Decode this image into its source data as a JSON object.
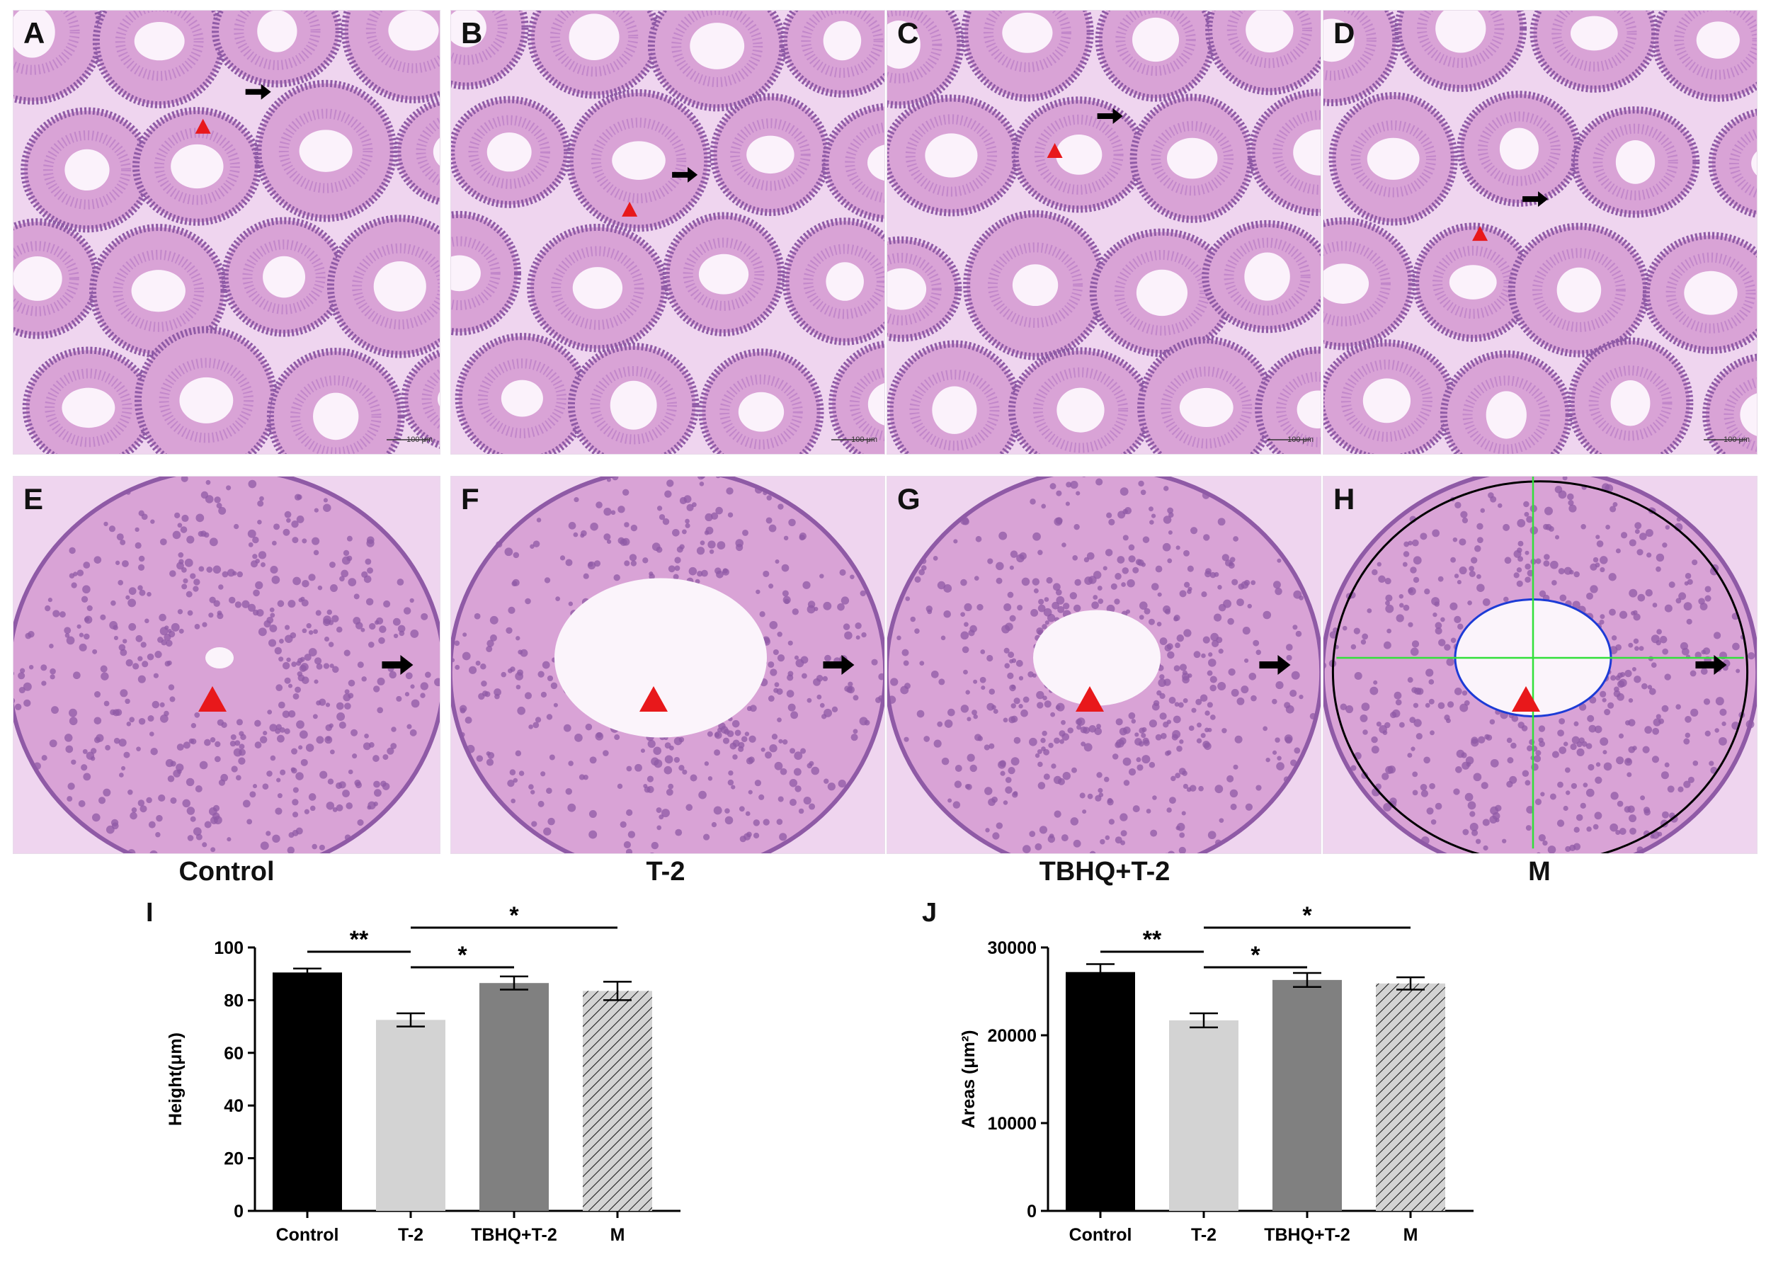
{
  "panels_top": [
    {
      "label": "A",
      "scale": "100 μm"
    },
    {
      "label": "B",
      "scale": "100 μm"
    },
    {
      "label": "C",
      "scale": "100 μm"
    },
    {
      "label": "D",
      "scale": "100 μm"
    }
  ],
  "panels_bottom": [
    {
      "label": "E"
    },
    {
      "label": "F"
    },
    {
      "label": "G"
    },
    {
      "label": "H"
    }
  ],
  "group_labels": [
    "Control",
    "T-2",
    "TBHQ+T-2",
    "M"
  ],
  "colors": {
    "tissue_pink": "#d9a3d6",
    "tissue_purple": "#8f5aa6",
    "arrowhead_red": "#e8181b",
    "arrow_black": "#000000",
    "outline_blue": "#1d3bd6",
    "outline_black": "#000000",
    "measure_green": "#32e03a"
  },
  "chart_label_I": "I",
  "chart_label_J": "J",
  "chart_data": [
    {
      "type": "bar",
      "categories": [
        "Control",
        "T-2",
        "TBHQ+T-2",
        "M"
      ],
      "values": [
        90.5,
        72.5,
        86.5,
        83.5
      ],
      "errors": [
        1.5,
        2.5,
        2.5,
        3.5
      ],
      "fills": [
        "#000000",
        "#d3d3d3",
        "#808080",
        "hatch"
      ],
      "ylabel": "Height(μm)",
      "ylim": [
        0,
        100
      ],
      "yticks": [
        0,
        20,
        40,
        60,
        80,
        100
      ],
      "significance": [
        {
          "from": 0,
          "to": 1,
          "label": "**"
        },
        {
          "from": 1,
          "to": 2,
          "label": "*"
        },
        {
          "from": 1,
          "to": 3,
          "label": "*"
        }
      ]
    },
    {
      "type": "bar",
      "categories": [
        "Control",
        "T-2",
        "TBHQ+T-2",
        "M"
      ],
      "values": [
        27200,
        21700,
        26300,
        25900
      ],
      "errors": [
        900,
        800,
        800,
        700
      ],
      "fills": [
        "#000000",
        "#d3d3d3",
        "#808080",
        "hatch"
      ],
      "ylabel": "Areas (μm²)",
      "ylim": [
        0,
        30000
      ],
      "yticks": [
        0,
        10000,
        20000,
        30000
      ],
      "significance": [
        {
          "from": 0,
          "to": 1,
          "label": "**"
        },
        {
          "from": 1,
          "to": 2,
          "label": "*"
        },
        {
          "from": 1,
          "to": 3,
          "label": "*"
        }
      ]
    }
  ]
}
